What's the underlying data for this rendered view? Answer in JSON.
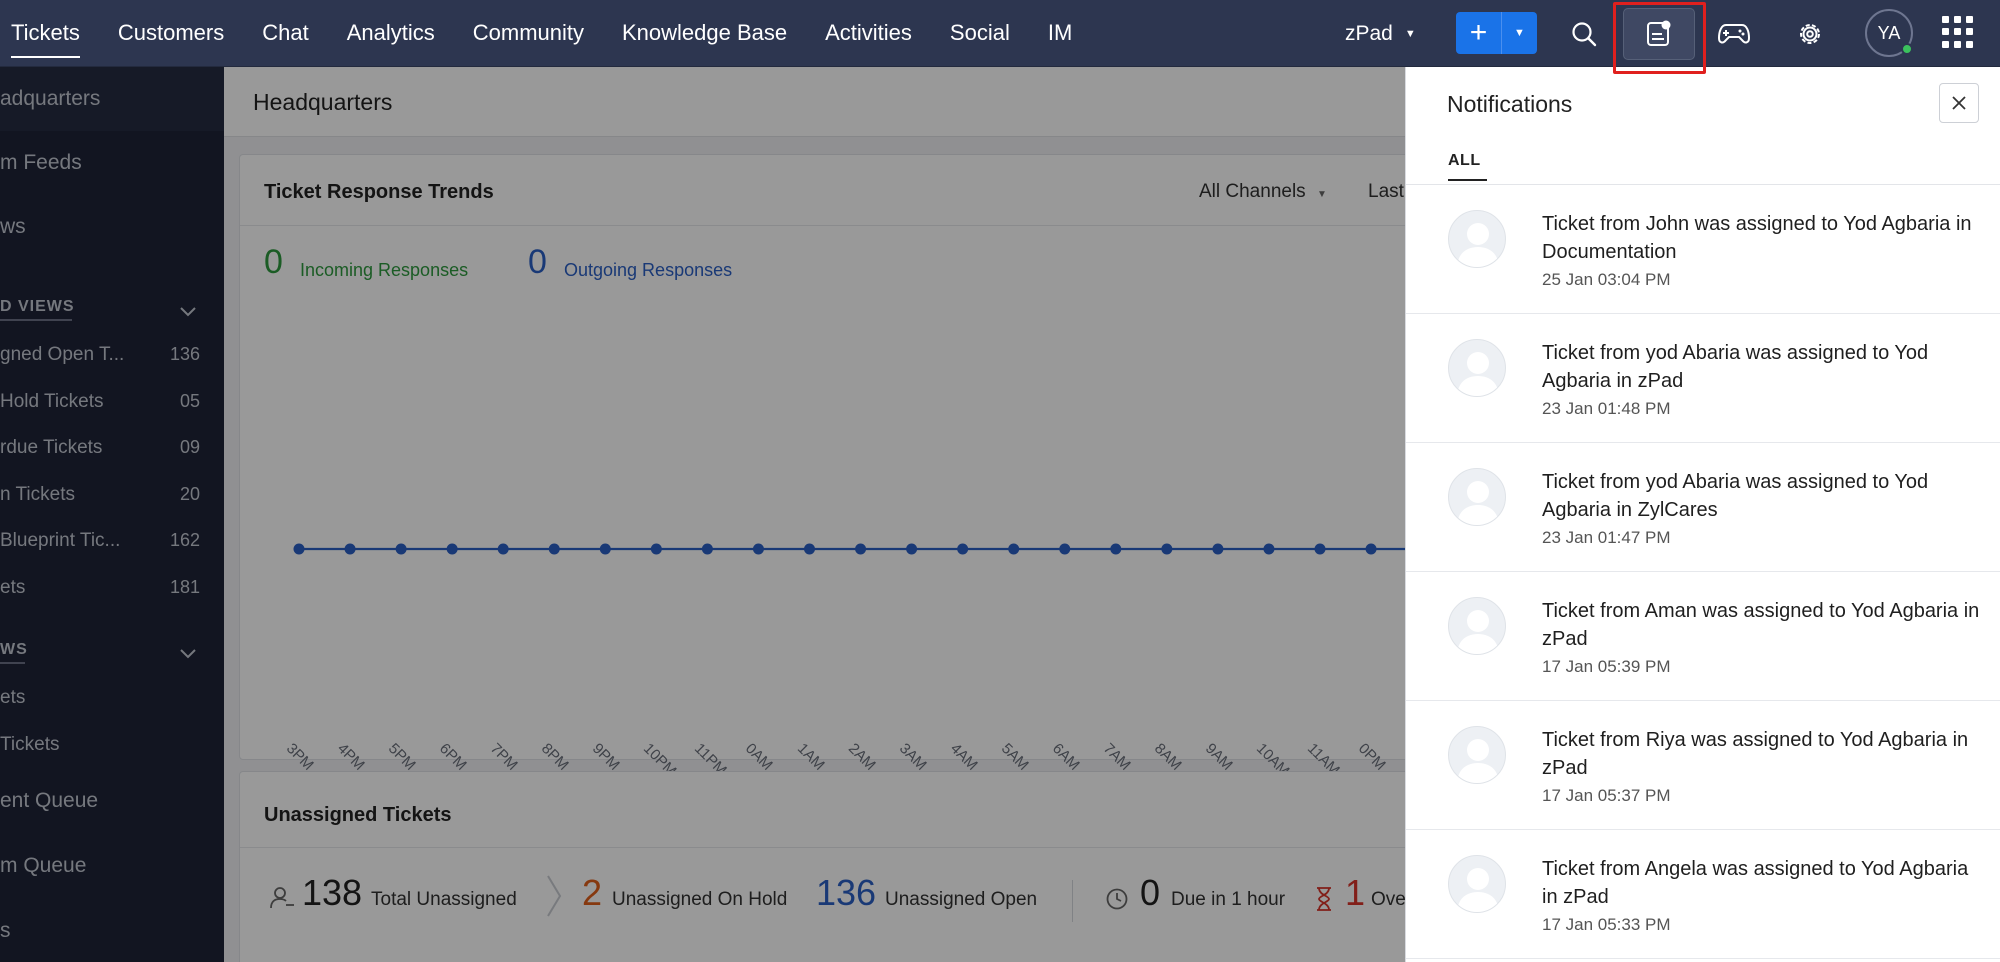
{
  "topnav": {
    "tabs": [
      {
        "label": "Tickets",
        "active": true
      },
      {
        "label": "Customers"
      },
      {
        "label": "Chat"
      },
      {
        "label": "Analytics"
      },
      {
        "label": "Community"
      },
      {
        "label": "Knowledge Base"
      },
      {
        "label": "Activities"
      },
      {
        "label": "Social"
      },
      {
        "label": "IM"
      }
    ],
    "department": "zPad",
    "avatar_initials": "YA",
    "icons": [
      "plus-icon",
      "chevron-down-icon",
      "search-icon",
      "notifications-icon",
      "game-controller-icon",
      "gear-icon",
      "apps-grid-icon"
    ]
  },
  "sidebar": {
    "items_top": [
      "adquarters",
      "m Feeds",
      "ws"
    ],
    "section1_label": "D VIEWS",
    "views": [
      {
        "label": "gned Open T...",
        "count": "136"
      },
      {
        "label": "Hold Tickets",
        "count": "05"
      },
      {
        "label": "rdue Tickets",
        "count": "09"
      },
      {
        "label": "n Tickets",
        "count": "20"
      },
      {
        "label": "Blueprint Tic...",
        "count": "162"
      },
      {
        "label": "ets",
        "count": "181"
      }
    ],
    "section2_label": "WS",
    "views2": [
      "ets",
      "Tickets"
    ],
    "queues": [
      "ent Queue",
      "m Queue",
      "s"
    ]
  },
  "main": {
    "page_title": "Headquarters",
    "trends": {
      "title": "Ticket Response Trends",
      "filter_channel": "All Channels",
      "filter_period": "Last",
      "incoming_value": "0",
      "incoming_label": "Incoming Responses",
      "outgoing_value": "0",
      "outgoing_label": "Outgoing Responses"
    },
    "unassigned": {
      "title": "Unassigned Tickets",
      "total_value": "138",
      "total_label": "Total Unassigned",
      "onhold_value": "2",
      "onhold_label": "Unassigned On Hold",
      "open_value": "136",
      "open_label": "Unassigned Open",
      "due_value": "0",
      "due_label": "Due in 1 hour",
      "overdue_value": "1",
      "overdue_label": "Ove"
    }
  },
  "chart_data": {
    "type": "line",
    "x": [
      "3PM",
      "4PM",
      "5PM",
      "6PM",
      "7PM",
      "8PM",
      "9PM",
      "10PM",
      "11PM",
      "0AM",
      "1AM",
      "2AM",
      "3AM",
      "4AM",
      "5AM",
      "6AM",
      "7AM",
      "8AM",
      "9AM",
      "10AM",
      "11AM",
      "0PM"
    ],
    "series": [
      {
        "name": "Incoming Responses",
        "values": [
          0,
          0,
          0,
          0,
          0,
          0,
          0,
          0,
          0,
          0,
          0,
          0,
          0,
          0,
          0,
          0,
          0,
          0,
          0,
          0,
          0,
          0
        ],
        "color": "#2b5fc5"
      }
    ],
    "grid": false
  },
  "notifications": {
    "title": "Notifications",
    "tab_all": "ALL",
    "items": [
      {
        "message": "Ticket from John was assigned to Yod Agbaria in Documentation",
        "time": "25 Jan 03:04 PM"
      },
      {
        "message": "Ticket from yod Abaria was assigned to Yod Agbaria in zPad",
        "time": "23 Jan 01:48 PM"
      },
      {
        "message": "Ticket from yod Abaria was assigned to Yod Agbaria in ZylCares",
        "time": "23 Jan 01:47 PM"
      },
      {
        "message": "Ticket from Aman was assigned to Yod Agbaria in zPad",
        "time": "17 Jan 05:39 PM"
      },
      {
        "message": "Ticket from Riya was assigned to Yod Agbaria in zPad",
        "time": "17 Jan 05:37 PM"
      },
      {
        "message": "Ticket from Angela was assigned to Yod Agbaria in zPad",
        "time": "17 Jan 05:33 PM"
      }
    ]
  },
  "colors": {
    "nav_bg": "#2d3650",
    "accent_blue": "#1a73e8",
    "incoming_green": "#2e9a3e",
    "outgoing_blue": "#2b5fc5",
    "onhold_orange": "#e0601c",
    "overdue_red": "#d9342b",
    "highlight_red": "#e0201e"
  }
}
